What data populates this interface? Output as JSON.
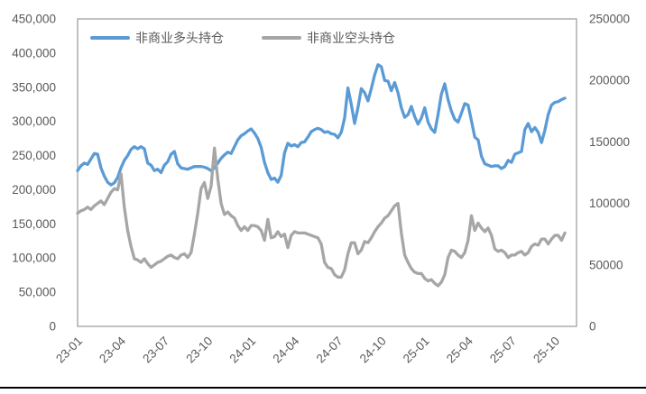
{
  "colors": {
    "long_series": "#5B9BD5",
    "short_series": "#A6A6A6",
    "axis_text": "#595959",
    "plot_border": "#A0A0A0",
    "bottom_rule": "#000000"
  },
  "chart_data": {
    "type": "line",
    "title": "",
    "legend_position": "top",
    "grid": false,
    "frequency": "weekly",
    "x_axis": {
      "tick_labels": [
        "23-01",
        "23-04",
        "23-07",
        "23-10",
        "24-01",
        "24-04",
        "24-07",
        "24-10",
        "25-01",
        "25-04",
        "25-07",
        "25-10"
      ],
      "ticks_every_n_points": 13,
      "label_rotation_deg": -45
    },
    "left_axis": {
      "min": 0,
      "max": 450000,
      "step": 50000,
      "tick_labels": [
        "450,000",
        "400,000",
        "350,000",
        "300,000",
        "250,000",
        "200,000",
        "150,000",
        "100,000",
        "50,000",
        "0"
      ]
    },
    "right_axis": {
      "min": 0,
      "max": 250000,
      "step": 50000,
      "tick_labels": [
        "250000",
        "200000",
        "150000",
        "100000",
        "50000",
        "0"
      ]
    },
    "series": [
      {
        "name": "非商业多头持仓",
        "color": "#5B9BD5",
        "axis": "left",
        "values": [
          228000,
          235000,
          239000,
          237000,
          245000,
          253000,
          252000,
          232000,
          220000,
          211000,
          207000,
          210000,
          218000,
          232000,
          243000,
          250000,
          259000,
          263000,
          260000,
          263000,
          260000,
          239000,
          236000,
          228000,
          230000,
          225000,
          236000,
          241000,
          252000,
          256000,
          238000,
          232000,
          231000,
          230000,
          232000,
          234000,
          234000,
          234000,
          233000,
          231000,
          228000,
          232000,
          239000,
          246000,
          251000,
          255000,
          253000,
          263000,
          273000,
          279000,
          282000,
          286000,
          289000,
          283000,
          275000,
          262000,
          240000,
          225000,
          215000,
          217000,
          211000,
          221000,
          254000,
          268000,
          264000,
          266000,
          263000,
          269000,
          270000,
          277000,
          285000,
          288000,
          290000,
          288000,
          284000,
          285000,
          282000,
          281000,
          276000,
          284000,
          305000,
          349000,
          325000,
          297000,
          320000,
          348000,
          342000,
          330000,
          348000,
          368000,
          383000,
          380000,
          360000,
          359000,
          345000,
          357000,
          342000,
          320000,
          306000,
          310000,
          322000,
          307000,
          296000,
          305000,
          320000,
          299000,
          289000,
          284000,
          310000,
          340000,
          355000,
          332000,
          315000,
          303000,
          299000,
          312000,
          326000,
          324000,
          301000,
          277000,
          273000,
          249000,
          238000,
          236000,
          234000,
          235000,
          235000,
          231000,
          234000,
          243000,
          240000,
          252000,
          254000,
          256000,
          288000,
          297000,
          285000,
          291000,
          284000,
          269000,
          287000,
          310000,
          324000,
          328000,
          329000,
          332000,
          334000
        ]
      },
      {
        "name": "非商业空头持仓",
        "color": "#A6A6A6",
        "axis": "right",
        "values": [
          92000,
          94000,
          95000,
          97000,
          95000,
          98000,
          100000,
          102000,
          99000,
          104000,
          109000,
          112000,
          111000,
          124000,
          97000,
          78000,
          65000,
          55000,
          54000,
          52000,
          55000,
          51000,
          48000,
          50000,
          52000,
          53000,
          55000,
          57000,
          58000,
          56000,
          55000,
          58000,
          59000,
          56000,
          60000,
          75000,
          92000,
          112000,
          117000,
          104000,
          114000,
          145000,
          120000,
          100000,
          91000,
          93000,
          90000,
          88000,
          82000,
          78000,
          81000,
          78000,
          82000,
          82000,
          81000,
          78000,
          70000,
          87000,
          72000,
          73000,
          77000,
          73000,
          75000,
          64000,
          74000,
          77000,
          76000,
          76000,
          76000,
          75000,
          74000,
          73000,
          72000,
          67000,
          52000,
          48000,
          47000,
          42000,
          40000,
          40000,
          46000,
          59000,
          68000,
          68000,
          59000,
          62000,
          69000,
          68000,
          72000,
          77000,
          81000,
          84000,
          88000,
          90000,
          94000,
          98000,
          100000,
          76000,
          58000,
          52000,
          47000,
          44000,
          43000,
          43000,
          39000,
          37000,
          38000,
          35000,
          33000,
          36000,
          42000,
          56000,
          62000,
          61000,
          58000,
          56000,
          60000,
          70000,
          90000,
          78000,
          84000,
          80000,
          77000,
          80000,
          74000,
          63000,
          61000,
          62000,
          60000,
          56000,
          58000,
          58000,
          60000,
          61000,
          58000,
          60000,
          65000,
          67000,
          66000,
          71000,
          71000,
          67000,
          71000,
          74000,
          74000,
          70000,
          76000
        ]
      }
    ]
  }
}
